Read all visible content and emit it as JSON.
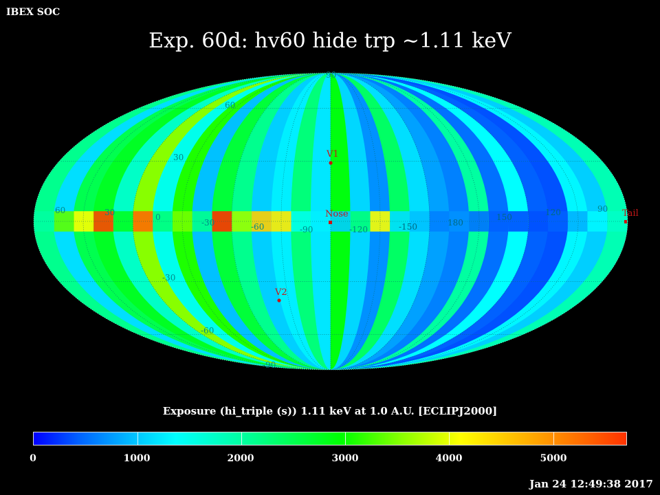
{
  "header": {
    "corner_label": "IBEX SOC",
    "title": "Exp.   60d: hv60 hide trp ~1.11 keV",
    "timestamp": "Jan 24 12:49:38 2017"
  },
  "colorbar": {
    "title": "Exposure (hi_triple (s))  1.11 keV at 1.0 A.U. [ECLIPJ2000]",
    "ticks": [
      "0",
      "1000",
      "2000",
      "3000",
      "4000",
      "5000"
    ],
    "range": [
      0,
      5700
    ],
    "colors": [
      "#0000ff",
      "#0066ff",
      "#00ccff",
      "#00ffff",
      "#00ff88",
      "#00ff00",
      "#88ff00",
      "#ffff00",
      "#ffaa00",
      "#ff3300"
    ]
  },
  "map": {
    "projection": "Mollweide",
    "frame": "ECLIPJ2000",
    "longitude_labels": [
      "60",
      "30",
      "0",
      "-30",
      "-60",
      "-90",
      "-120",
      "-150",
      "180",
      "150",
      "120",
      "90"
    ],
    "latitude_labels": {
      "top": "90",
      "north_60": "60",
      "north_30": "30",
      "south_30": "-30",
      "south_60": "-60",
      "bottom": "-90"
    },
    "markers": [
      {
        "name": "V1",
        "label": "V1"
      },
      {
        "name": "V2",
        "label": "V2"
      },
      {
        "name": "Nose",
        "label": "Nose"
      },
      {
        "name": "Tail",
        "label": "Tail"
      }
    ],
    "band_exposure_s": [
      2500,
      1500,
      2800,
      3000,
      2200,
      3800,
      2000,
      3300,
      1200,
      2900,
      2500,
      1300,
      1700,
      2600,
      1600,
      3100,
      1400,
      900,
      2700,
      1500,
      1000,
      800,
      2400,
      700,
      1900,
      600,
      500,
      1800,
      1300,
      2300
    ]
  }
}
